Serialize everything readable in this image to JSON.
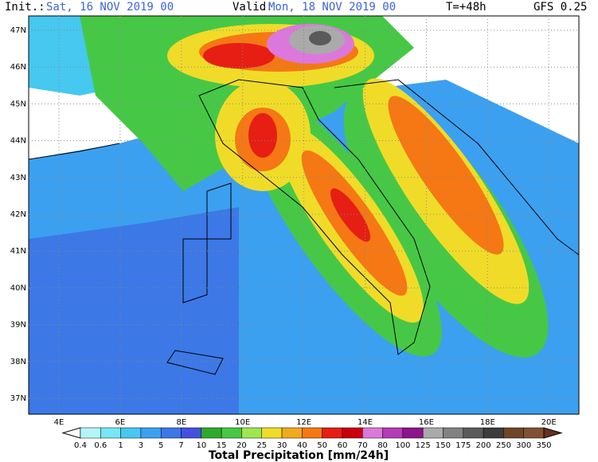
{
  "header": {
    "init_label": "Init.:",
    "init_value": "Sat, 16 NOV 2019  00",
    "valid_label": "Valid:",
    "valid_value": "Mon, 18 NOV 2019  00",
    "lead_time": "T=+48h",
    "model": "GFS 0.25"
  },
  "map": {
    "lat_labels": [
      "47N",
      "46N",
      "45N",
      "44N",
      "43N",
      "42N",
      "41N",
      "40N",
      "39N",
      "38N",
      "37N"
    ],
    "lon_labels": [
      "4E",
      "6E",
      "8E",
      "10E",
      "12E",
      "14E",
      "16E",
      "18E",
      "20E"
    ]
  },
  "colorbar": {
    "labels": [
      "0.4",
      "0.6",
      "1",
      "3",
      "5",
      "7",
      "10",
      "15",
      "20",
      "25",
      "30",
      "40",
      "50",
      "60",
      "70",
      "80",
      "100",
      "125",
      "150",
      "175",
      "200",
      "250",
      "300",
      "350"
    ],
    "colors": [
      "#ffffff",
      "#b4f5fa",
      "#78e6f5",
      "#46c8f0",
      "#3ca0f0",
      "#3c78e6",
      "#4650dc",
      "#2daa2d",
      "#46c846",
      "#a0e650",
      "#f0dc28",
      "#f0aa1e",
      "#f57814",
      "#e61e14",
      "#c8000a",
      "#dc78dc",
      "#b43cb4",
      "#8c148c",
      "#aaaaaa",
      "#828282",
      "#5a5a5a",
      "#3c3c3c",
      "#6e4628",
      "#825032",
      "#64321e"
    ],
    "title": "Total Precipitation [mm/24h]"
  }
}
